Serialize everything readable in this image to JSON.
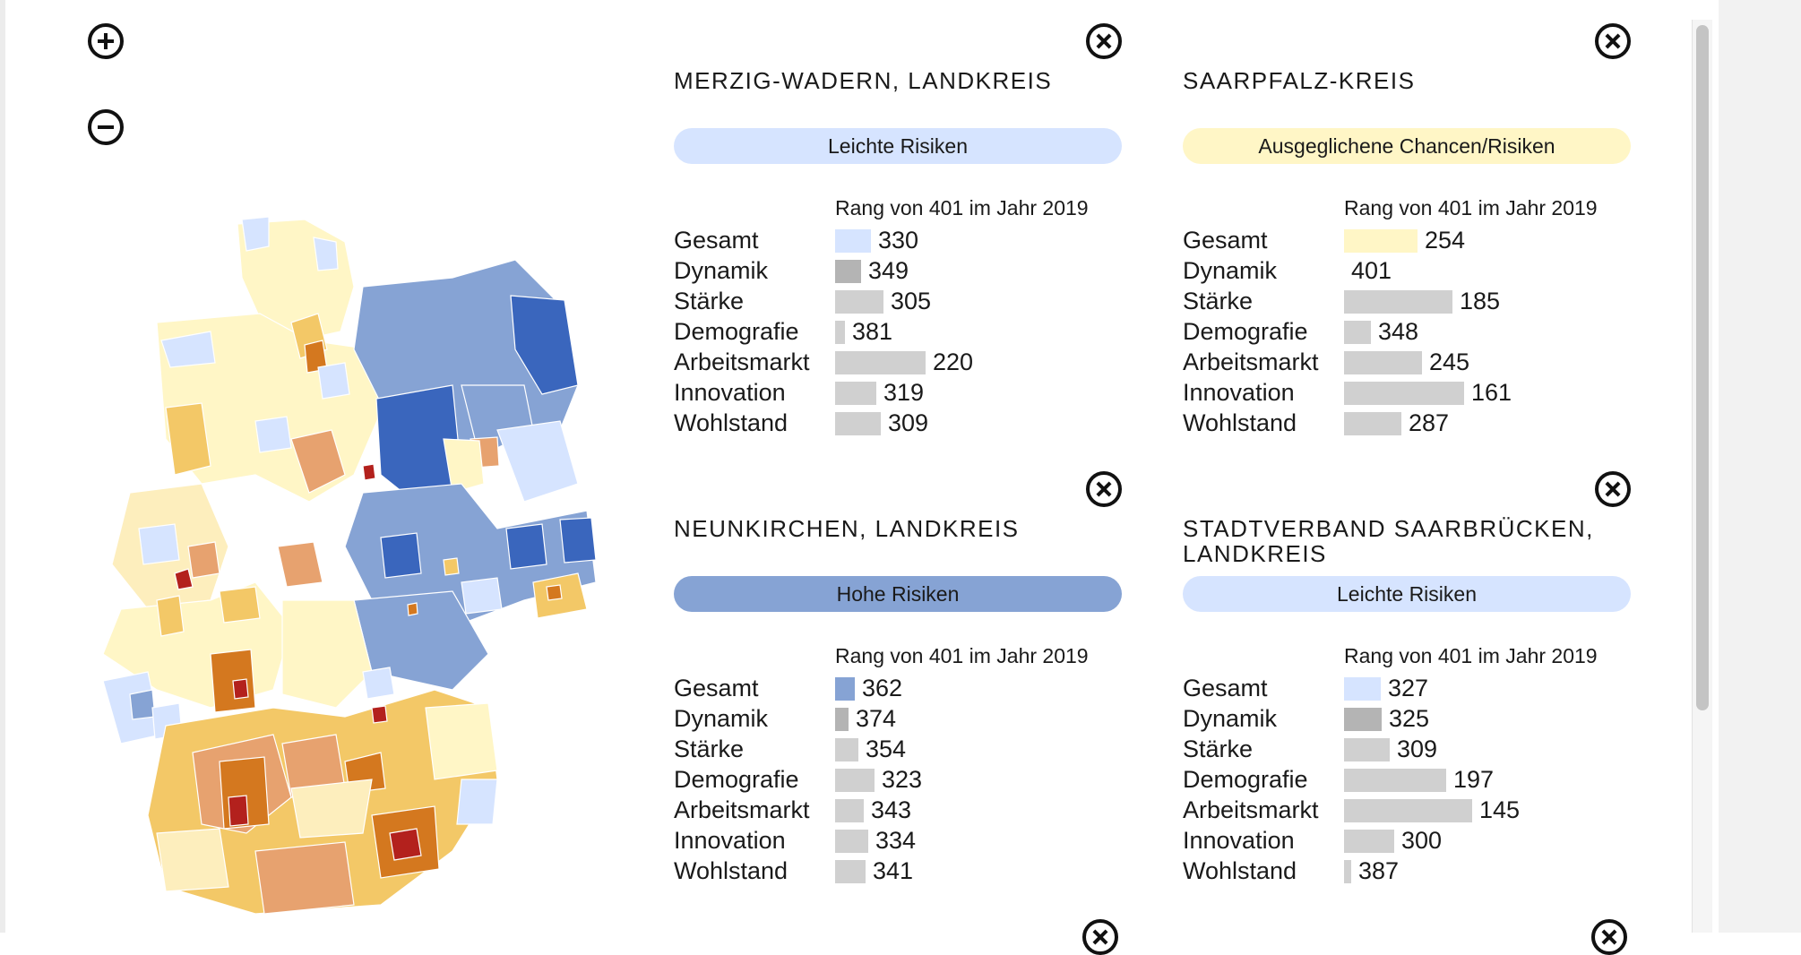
{
  "zoom": {
    "in_icon": "plus-circle-icon",
    "out_icon": "minus-circle-icon"
  },
  "map": {
    "icon": "germany-district-map"
  },
  "colors": {
    "leichte_risiken": "#d6e4ff",
    "ausgeglichen": "#fff6c6",
    "hohe_risiken": "#86a3d4",
    "sehr_hohe_risiken": "#3a66bd",
    "leichte_chancen": "#fdeebd",
    "chancen": "#f3c867",
    "hohe_chancen": "#e7a26f",
    "sehr_hohe_chancen": "#d4781f",
    "top_chancen": "#b3211d",
    "bar_default": "#d0d0d0",
    "bar_dynamik": "#b4b4b4"
  },
  "cards": [
    {
      "title": "MERZIG-WADERN, LANDKREIS",
      "badge": "Leichte Risiken",
      "badge_color": "#d6e4ff",
      "rank_caption": "Rang von 401 im Jahr 2019",
      "rows": [
        {
          "label": "Gesamt",
          "rank": 330,
          "color": "#d6e4ff"
        },
        {
          "label": "Dynamik",
          "rank": 349,
          "color": "#b4b4b4"
        },
        {
          "label": "Stärke",
          "rank": 305,
          "color": "#d0d0d0"
        },
        {
          "label": "Demografie",
          "rank": 381,
          "color": "#d0d0d0"
        },
        {
          "label": "Arbeitsmarkt",
          "rank": 220,
          "color": "#d0d0d0"
        },
        {
          "label": "Innovation",
          "rank": 319,
          "color": "#d0d0d0"
        },
        {
          "label": "Wohlstand",
          "rank": 309,
          "color": "#d0d0d0"
        }
      ]
    },
    {
      "title": "SAARPFALZ-KREIS",
      "badge": "Ausgeglichene Chancen/Risiken",
      "badge_color": "#fff6c6",
      "rank_caption": "Rang von 401 im Jahr 2019",
      "rows": [
        {
          "label": "Gesamt",
          "rank": 254,
          "color": "#fff6c6"
        },
        {
          "label": "Dynamik",
          "rank": 401,
          "color": "#b4b4b4"
        },
        {
          "label": "Stärke",
          "rank": 185,
          "color": "#d0d0d0"
        },
        {
          "label": "Demografie",
          "rank": 348,
          "color": "#d0d0d0"
        },
        {
          "label": "Arbeitsmarkt",
          "rank": 245,
          "color": "#d0d0d0"
        },
        {
          "label": "Innovation",
          "rank": 161,
          "color": "#d0d0d0"
        },
        {
          "label": "Wohlstand",
          "rank": 287,
          "color": "#d0d0d0"
        }
      ]
    },
    {
      "title": "NEUNKIRCHEN, LANDKREIS",
      "badge": "Hohe Risiken",
      "badge_color": "#86a3d4",
      "rank_caption": "Rang von 401 im Jahr 2019",
      "rows": [
        {
          "label": "Gesamt",
          "rank": 362,
          "color": "#86a3d4"
        },
        {
          "label": "Dynamik",
          "rank": 374,
          "color": "#b4b4b4"
        },
        {
          "label": "Stärke",
          "rank": 354,
          "color": "#d0d0d0"
        },
        {
          "label": "Demografie",
          "rank": 323,
          "color": "#d0d0d0"
        },
        {
          "label": "Arbeitsmarkt",
          "rank": 343,
          "color": "#d0d0d0"
        },
        {
          "label": "Innovation",
          "rank": 334,
          "color": "#d0d0d0"
        },
        {
          "label": "Wohlstand",
          "rank": 341,
          "color": "#d0d0d0"
        }
      ]
    },
    {
      "title": "STADTVERBAND SAARBRÜCKEN, LANDKREIS",
      "badge": "Leichte Risiken",
      "badge_color": "#d6e4ff",
      "rank_caption": "Rang von 401 im Jahr 2019",
      "rows": [
        {
          "label": "Gesamt",
          "rank": 327,
          "color": "#d6e4ff"
        },
        {
          "label": "Dynamik",
          "rank": 325,
          "color": "#b4b4b4"
        },
        {
          "label": "Stärke",
          "rank": 309,
          "color": "#d0d0d0"
        },
        {
          "label": "Demografie",
          "rank": 197,
          "color": "#d0d0d0"
        },
        {
          "label": "Arbeitsmarkt",
          "rank": 145,
          "color": "#d0d0d0"
        },
        {
          "label": "Innovation",
          "rank": 300,
          "color": "#d0d0d0"
        },
        {
          "label": "Wohlstand",
          "rank": 387,
          "color": "#d0d0d0"
        }
      ]
    }
  ],
  "close_icon": "close-circle-icon"
}
